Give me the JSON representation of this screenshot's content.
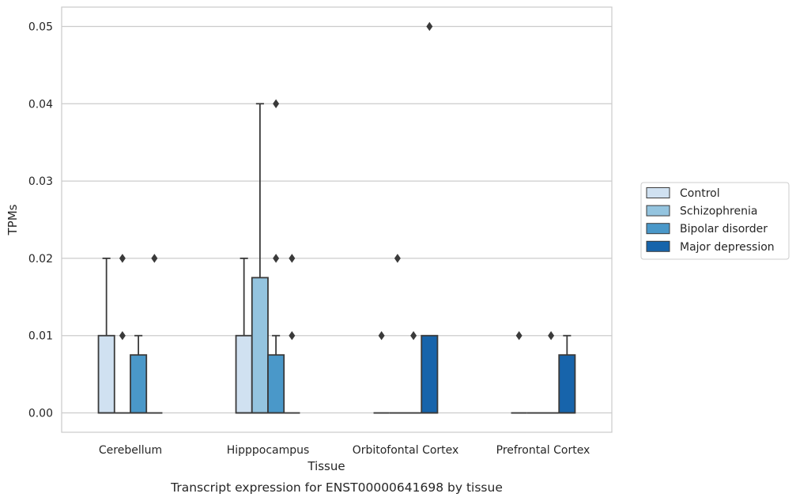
{
  "chart_data": {
    "type": "box",
    "caption": "Transcript expression for ENST00000641698 by tissue",
    "xlabel": "Tissue",
    "ylabel": "TPMs",
    "ylim": [
      -0.0025,
      0.0525
    ],
    "yticks": [
      "0.00",
      "0.01",
      "0.02",
      "0.03",
      "0.04",
      "0.05"
    ],
    "ytick_values": [
      0,
      0.01,
      0.02,
      0.03,
      0.04,
      0.05
    ],
    "grid": true,
    "legend_position": "right",
    "categories": [
      "Cerebellum",
      "Hipppocampus",
      "Orbitofontal Cortex",
      "Prefrontal Cortex"
    ],
    "series": [
      {
        "name": "Control",
        "color": "#d0e1f1",
        "boxes": [
          {
            "q1": 0,
            "q3": 0.01,
            "median": 0,
            "whisker_low": 0,
            "whisker_high": 0.02,
            "outliers": []
          },
          {
            "q1": 0,
            "q3": 0.01,
            "median": 0,
            "whisker_low": 0,
            "whisker_high": 0.02,
            "outliers": []
          },
          {
            "q1": 0,
            "q3": 0,
            "median": 0,
            "whisker_low": 0,
            "whisker_high": 0,
            "outliers": [
              0.01
            ]
          },
          {
            "q1": 0,
            "q3": 0,
            "median": 0,
            "whisker_low": 0,
            "whisker_high": 0,
            "outliers": [
              0.01
            ]
          }
        ]
      },
      {
        "name": "Schizophrenia",
        "color": "#94c4df",
        "boxes": [
          {
            "q1": 0,
            "q3": 0,
            "median": 0,
            "whisker_low": 0,
            "whisker_high": 0,
            "outliers": [
              0.01,
              0.02
            ]
          },
          {
            "q1": 0,
            "q3": 0.0175,
            "median": 0,
            "whisker_low": 0,
            "whisker_high": 0.04,
            "outliers": []
          },
          {
            "q1": 0,
            "q3": 0,
            "median": 0,
            "whisker_low": 0,
            "whisker_high": 0,
            "outliers": [
              0.02
            ]
          },
          {
            "q1": 0,
            "q3": 0,
            "median": 0,
            "whisker_low": 0,
            "whisker_high": 0,
            "outliers": []
          }
        ]
      },
      {
        "name": "Bipolar disorder",
        "color": "#4a98c9",
        "boxes": [
          {
            "q1": 0,
            "q3": 0.0075,
            "median": 0,
            "whisker_low": 0,
            "whisker_high": 0.01,
            "outliers": []
          },
          {
            "q1": 0,
            "q3": 0.0075,
            "median": 0,
            "whisker_low": 0,
            "whisker_high": 0.01,
            "outliers": [
              0.02,
              0.04
            ]
          },
          {
            "q1": 0,
            "q3": 0,
            "median": 0,
            "whisker_low": 0,
            "whisker_high": 0,
            "outliers": [
              0.01
            ]
          },
          {
            "q1": 0,
            "q3": 0,
            "median": 0,
            "whisker_low": 0,
            "whisker_high": 0,
            "outliers": [
              0.01
            ]
          }
        ]
      },
      {
        "name": "Major depression",
        "color": "#1764ab",
        "boxes": [
          {
            "q1": 0,
            "q3": 0,
            "median": 0,
            "whisker_low": 0,
            "whisker_high": 0,
            "outliers": [
              0.02
            ]
          },
          {
            "q1": 0,
            "q3": 0,
            "median": 0,
            "whisker_low": 0,
            "whisker_high": 0,
            "outliers": [
              0.01,
              0.02
            ]
          },
          {
            "q1": 0,
            "q3": 0.01,
            "median": 0,
            "whisker_low": 0,
            "whisker_high": 0.01,
            "outliers": [
              0.05
            ]
          },
          {
            "q1": 0,
            "q3": 0.0075,
            "median": 0,
            "whisker_low": 0,
            "whisker_high": 0.01,
            "outliers": []
          }
        ]
      }
    ]
  }
}
